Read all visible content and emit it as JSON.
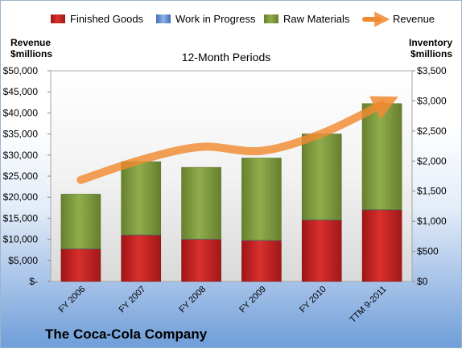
{
  "chart_data": {
    "type": "bar",
    "title": "12-Month Periods",
    "company_label": "The Coca-Cola Company",
    "categories": [
      "FY 2006",
      "FY 2007",
      "FY 2008",
      "FY 2009",
      "FY 2010",
      "TTM 9-2011"
    ],
    "left_axis": {
      "label_line1": "Revenue",
      "label_line2": "$millions",
      "ylim": [
        0,
        50000
      ],
      "ticks": [
        "$-",
        "$5,000",
        "$10,000",
        "$15,000",
        "$20,000",
        "$25,000",
        "$30,000",
        "$35,000",
        "$40,000",
        "$45,000",
        "$50,000"
      ]
    },
    "right_axis": {
      "label_line1": "Inventory",
      "label_line2": "$millions",
      "ylim": [
        0,
        3500
      ],
      "ticks": [
        "$0",
        "$500",
        "$1,000",
        "$1,500",
        "$2,000",
        "$2,500",
        "$3,000",
        "$3,500"
      ]
    },
    "series": [
      {
        "name": "Finished Goods",
        "type": "bar",
        "axis": "right",
        "color": "#c0201f",
        "values": [
          540,
          770,
          700,
          680,
          1020,
          1190
        ]
      },
      {
        "name": "Work in Progress",
        "type": "bar",
        "axis": "right",
        "color": "#5b8fd6",
        "values": [
          5,
          5,
          5,
          5,
          5,
          5
        ]
      },
      {
        "name": "Raw Materials",
        "type": "bar",
        "axis": "right",
        "color": "#7e9c3c",
        "values": [
          905,
          1215,
          1190,
          1365,
          1425,
          1760
        ]
      },
      {
        "name": "Revenue",
        "type": "line",
        "axis": "left",
        "color": "#f08a30",
        "values": [
          24088,
          28857,
          31944,
          30990,
          35119,
          42000
        ]
      }
    ],
    "legend_placement": "top",
    "grid": false
  }
}
